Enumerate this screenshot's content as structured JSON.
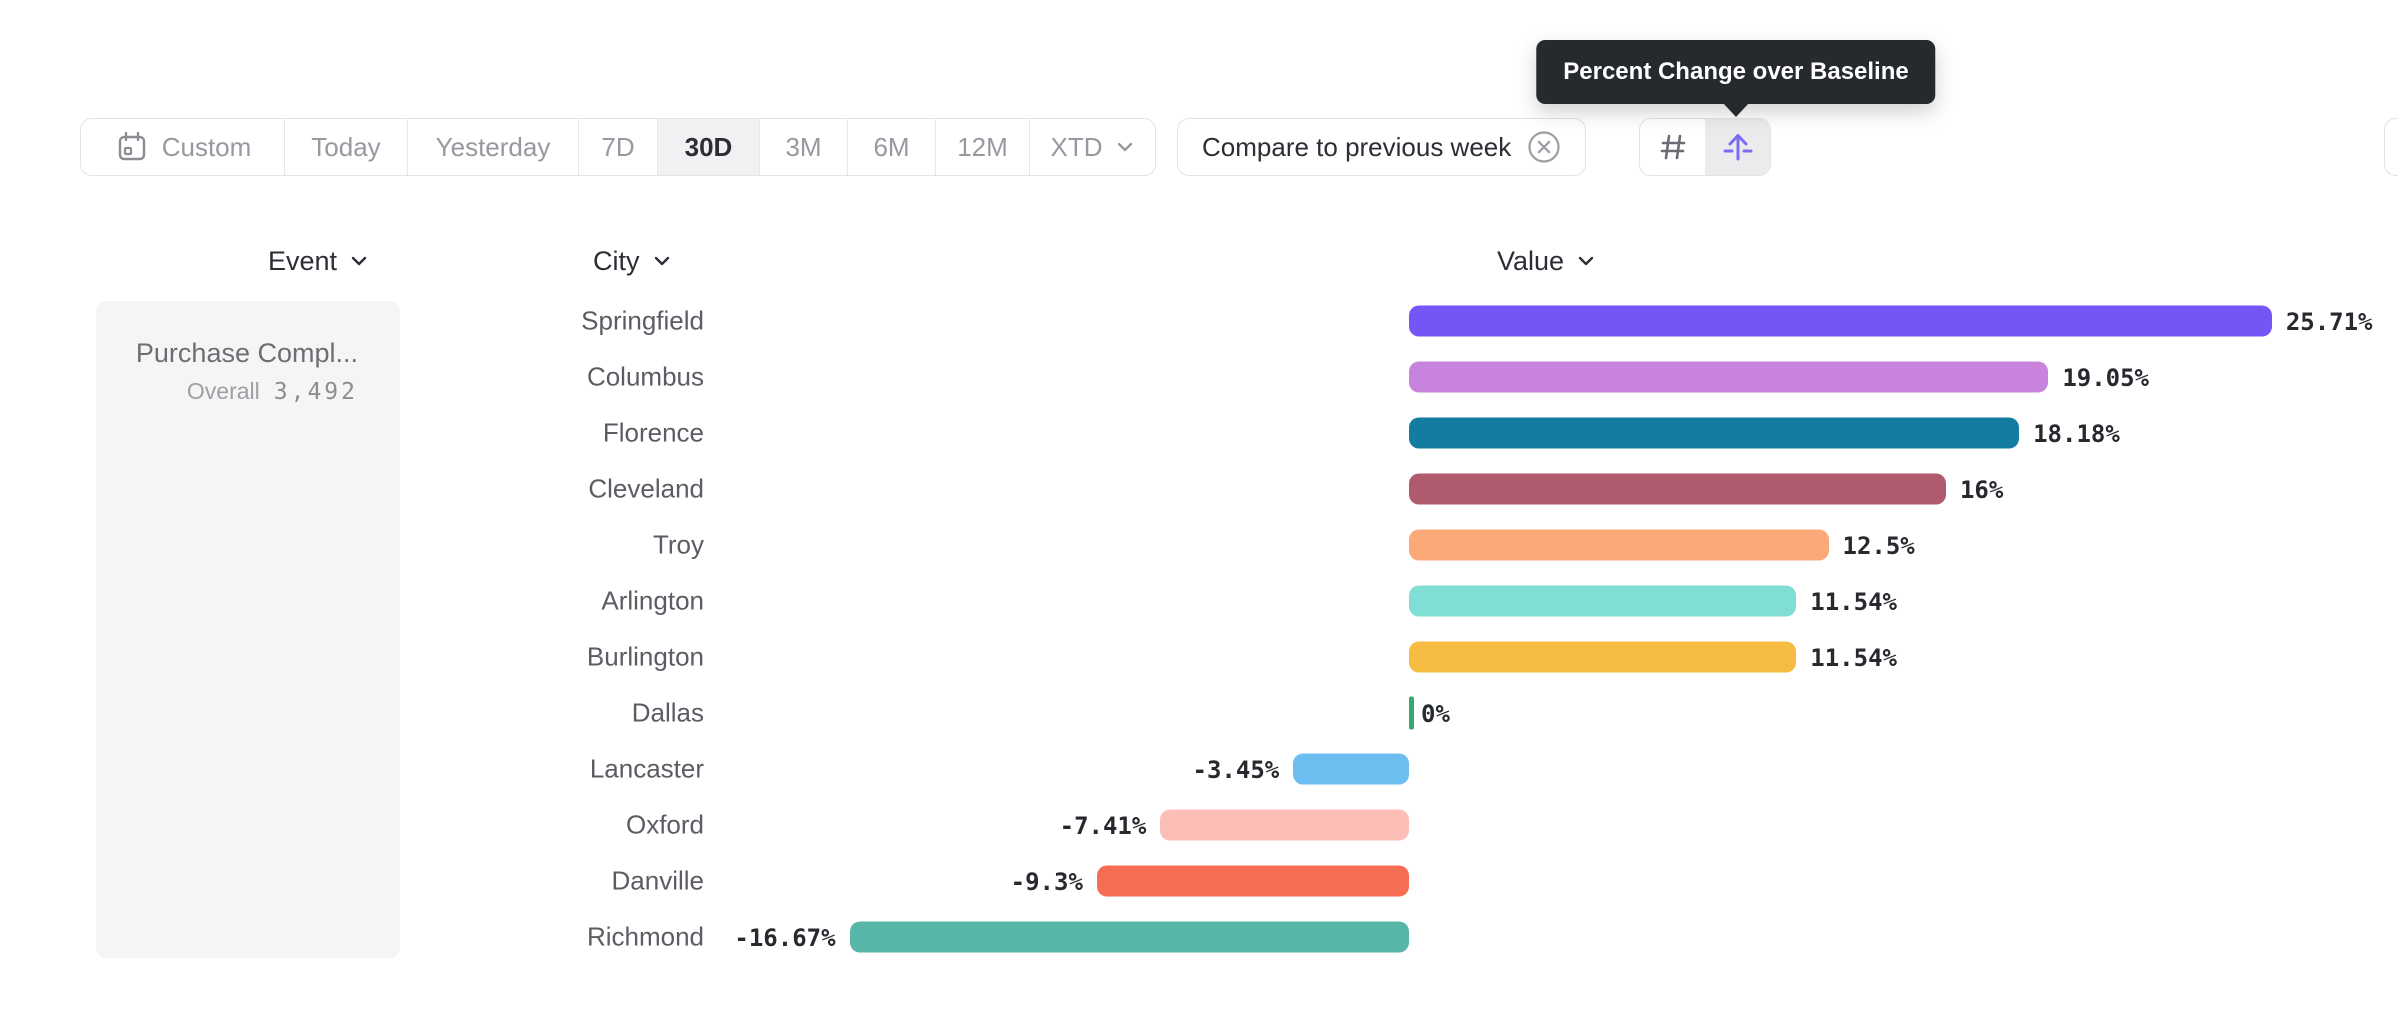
{
  "tooltip": {
    "text": "Percent Change over Baseline"
  },
  "toolbar": {
    "ranges": [
      {
        "label": "Custom",
        "has_calendar_icon": true,
        "selected": false
      },
      {
        "label": "Today",
        "selected": false
      },
      {
        "label": "Yesterday",
        "selected": false
      },
      {
        "label": "7D",
        "selected": false
      },
      {
        "label": "30D",
        "selected": true
      },
      {
        "label": "3M",
        "selected": false
      },
      {
        "label": "6M",
        "selected": false
      },
      {
        "label": "12M",
        "selected": false
      },
      {
        "label": "XTD",
        "has_chevron": true,
        "selected": false
      }
    ],
    "compare_filter": {
      "label": "Compare to previous week",
      "dismiss_icon": "circle-x-icon"
    },
    "view_toggle": {
      "options": [
        {
          "name": "number-view",
          "icon": "hash-icon",
          "selected": false
        },
        {
          "name": "percent-change-view",
          "icon": "arrow-up-baseline-icon",
          "selected": true
        }
      ]
    }
  },
  "columns": [
    {
      "label": "Event"
    },
    {
      "label": "City"
    },
    {
      "label": "Value"
    }
  ],
  "event_card": {
    "title": "Purchase Compl...",
    "subtitle_label": "Overall",
    "subtitle_value": "3,492"
  },
  "chart_data": {
    "type": "bar",
    "orientation": "horizontal",
    "unit": "percent",
    "baseline": 0,
    "xlim": [
      -18,
      26
    ],
    "legend": "none",
    "grid": "off",
    "categories": [
      "Springfield",
      "Columbus",
      "Florence",
      "Cleveland",
      "Troy",
      "Arlington",
      "Burlington",
      "Dallas",
      "Lancaster",
      "Oxford",
      "Danville",
      "Richmond"
    ],
    "values": [
      25.71,
      19.05,
      18.18,
      16,
      12.5,
      11.54,
      11.54,
      0,
      -3.45,
      -7.41,
      -9.3,
      -16.67
    ],
    "value_labels": [
      "25.71%",
      "19.05%",
      "18.18%",
      "16%",
      "12.5%",
      "11.54%",
      "11.54%",
      "0%",
      "-3.45%",
      "-7.41%",
      "-9.3%",
      "-16.67%"
    ],
    "bar_colors": [
      "#7655F7",
      "#C884DC",
      "#137DA1",
      "#B05A6E",
      "#FBA978",
      "#81DED5",
      "#F5BC41",
      "#35A877",
      "#6CBEF1",
      "#FBBFB7",
      "#F56E54",
      "#57B6A8"
    ]
  },
  "colors": {
    "tooltip_bg": "#26292E",
    "text_dark": "#2B2E35",
    "text_gray": "#96999F",
    "city_label": "#5A5D63",
    "selected_bg": "#F1F1F3",
    "border": "#E2E3E5",
    "card_bg": "#F5F5F6",
    "accent_purple": "#7C6CF2",
    "icon_gray": "#6A6D73",
    "zero_tick_green": "#35A877"
  }
}
